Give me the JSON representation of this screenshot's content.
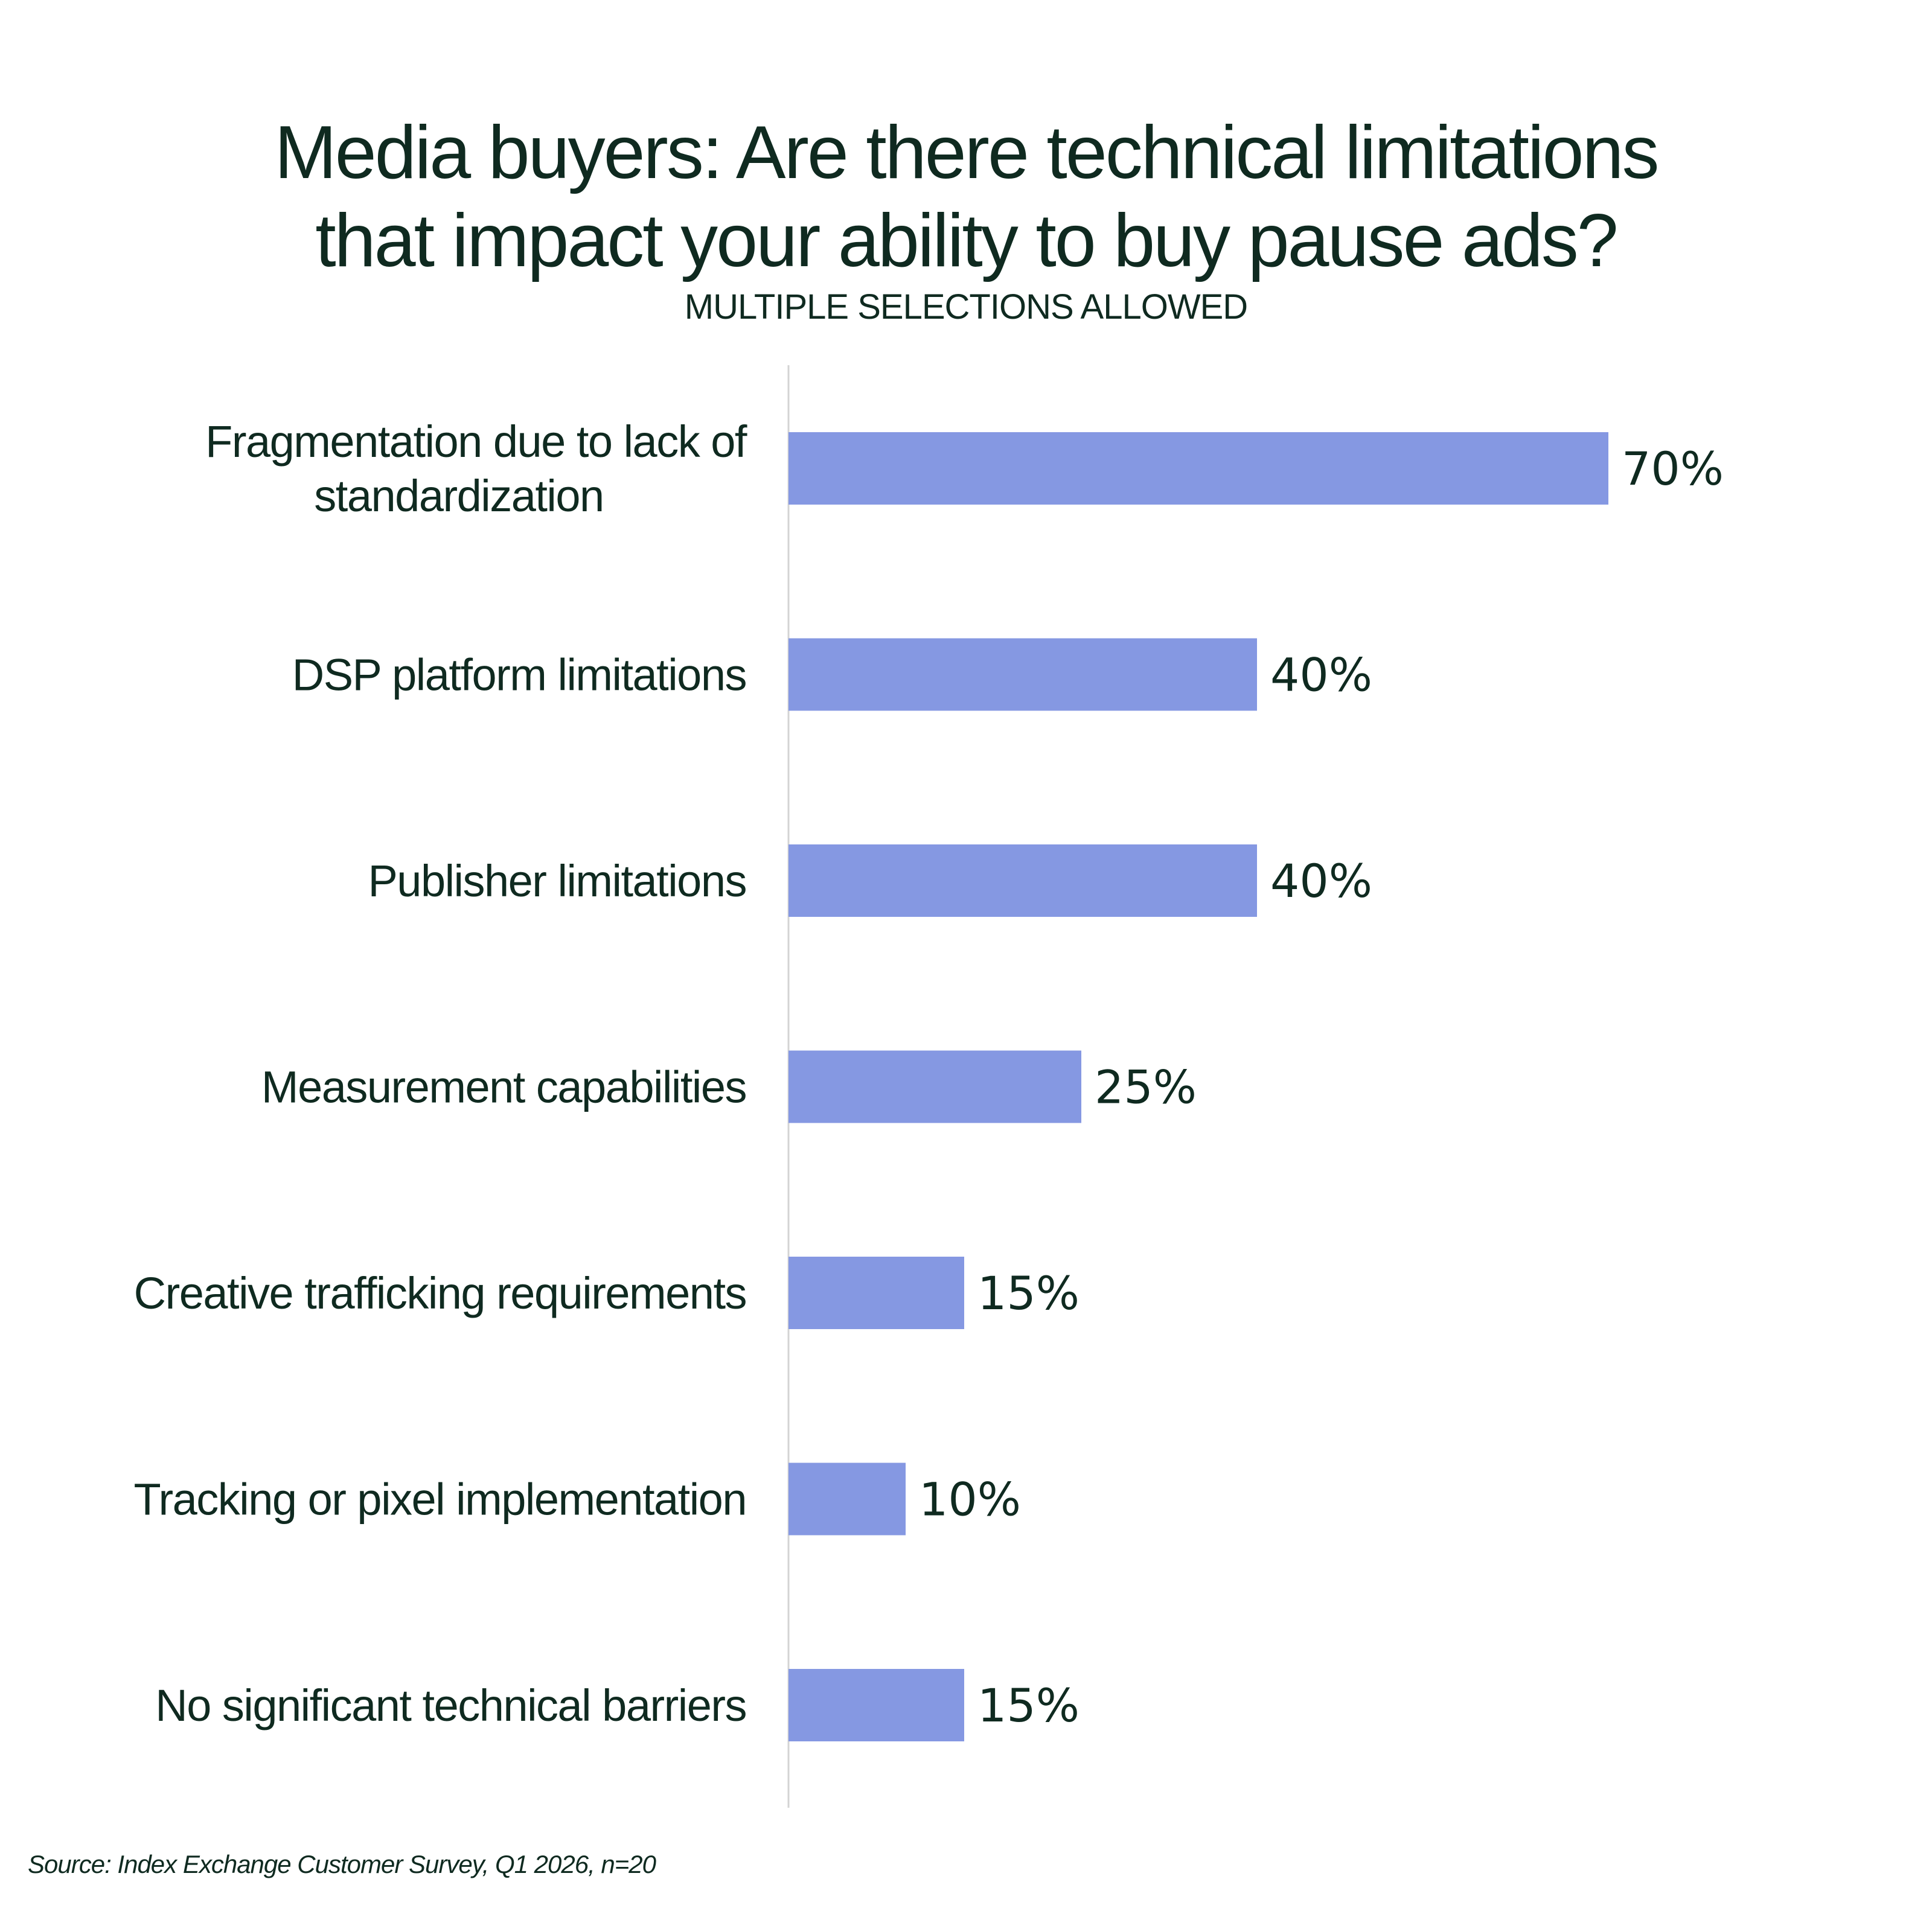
{
  "chart_data": {
    "type": "bar",
    "orientation": "horizontal",
    "title_lines": [
      "Media buyers: Are there technical limitations",
      "that impact your ability to buy pause ads?"
    ],
    "subtitle": "MULTIPLE SELECTIONS ALLOWED",
    "categories": [
      [
        "Fragmentation due to lack of",
        "standardization"
      ],
      [
        "DSP platform limitations"
      ],
      [
        "Publisher limitations"
      ],
      [
        "Measurement capabilities"
      ],
      [
        "Creative trafficking requirements"
      ],
      [
        "Tracking or pixel implementation"
      ],
      [
        "No significant technical barriers"
      ]
    ],
    "values": [
      70,
      40,
      40,
      25,
      15,
      10,
      15
    ],
    "value_labels": [
      "70%",
      "40%",
      "40%",
      "25%",
      "15%",
      "10%",
      "15%"
    ],
    "xlim": [
      0,
      100
    ],
    "unit": "%",
    "grid": false,
    "legend": "none",
    "bar_color": "#8598e2",
    "axis_color": "#d4d4d4",
    "text_color": "#0f2a20"
  },
  "source": "Source: Index Exchange Customer Survey, Q1 2026, n=20"
}
